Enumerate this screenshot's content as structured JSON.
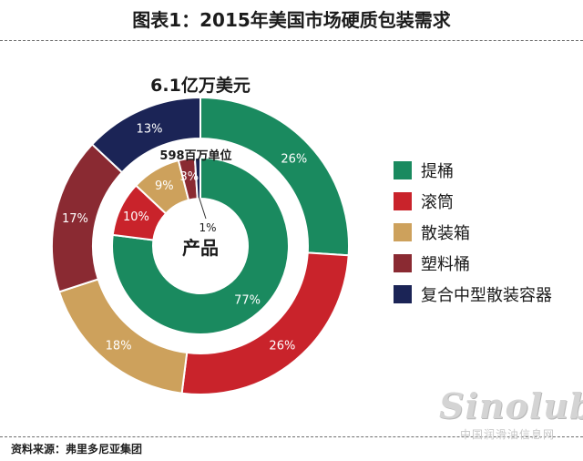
{
  "header": {
    "title": "图表1：2015年美国市场硬质包装需求"
  },
  "chart_data": {
    "type": "pie",
    "subtype": "double-donut",
    "categories": [
      "提桶",
      "滚筒",
      "散装箱",
      "塑料桶",
      "复合中型散装容器"
    ],
    "colors": [
      "#1a8a5f",
      "#c9232b",
      "#cda15c",
      "#8a2a32",
      "#1b2456"
    ],
    "series": [
      {
        "name": "6.1亿万美元",
        "ring": "outer",
        "values": [
          26,
          26,
          18,
          17,
          13
        ],
        "labels": [
          "26%",
          "26%",
          "18%",
          "17%",
          "13%"
        ]
      },
      {
        "name": "598百万单位",
        "ring": "inner",
        "values": [
          77,
          10,
          9,
          3,
          1
        ],
        "labels": [
          "77%",
          "10%",
          "9%",
          "3%",
          "1%"
        ]
      }
    ],
    "center_label": "产品",
    "legend_position": "right"
  },
  "footer": {
    "source": "资料来源：弗里多尼亚集团"
  },
  "watermark": {
    "logo": "Sinolub",
    "text": "中国润滑油信息网"
  }
}
